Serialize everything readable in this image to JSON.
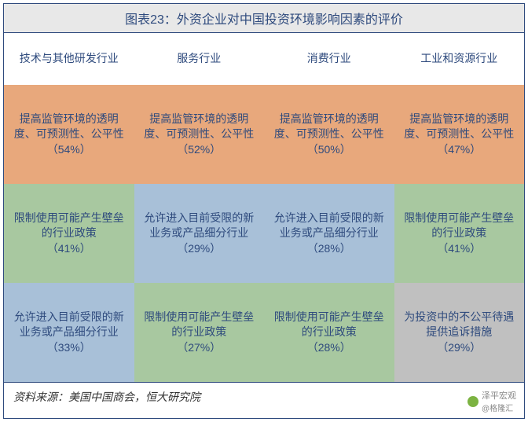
{
  "title": "图表23：外资企业对中国投资环境影响因素的评价",
  "colors": {
    "border": "#2e4a7d",
    "title_bg": "#e8e8e8",
    "header_bg": "#ffffff",
    "orange": "#e8a87c",
    "green": "#a8c8a0",
    "blue": "#a8c0d8",
    "grey": "#c0c0c0",
    "text": "#2e4a7d"
  },
  "columns": [
    "技术与其他研发行业",
    "服务行业",
    "消费行业",
    "工业和资源行业"
  ],
  "rows": [
    [
      {
        "text": "提高监管环境的透明度、可预测性、公平性",
        "pct": "（54%）",
        "color": "orange"
      },
      {
        "text": "提高监管环境的透明度、可预测性、公平性",
        "pct": "（52%）",
        "color": "orange"
      },
      {
        "text": "提高监管环境的透明度、可预测性、公平性",
        "pct": "（50%）",
        "color": "orange"
      },
      {
        "text": "提高监管环境的透明度、可预测性、公平性",
        "pct": "（47%）",
        "color": "orange"
      }
    ],
    [
      {
        "text": "限制使用可能产生壁垒的行业政策",
        "pct": "（41%）",
        "color": "green"
      },
      {
        "text": "允许进入目前受限的新业务或产品细分行业",
        "pct": "（29%）",
        "color": "blue"
      },
      {
        "text": "允许进入目前受限的新业务或产品细分行业",
        "pct": "（28%）",
        "color": "blue"
      },
      {
        "text": "限制使用可能产生壁垒的行业政策",
        "pct": "（41%）",
        "color": "green"
      }
    ],
    [
      {
        "text": "允许进入目前受限的新业务或产品细分行业",
        "pct": "（33%）",
        "color": "blue"
      },
      {
        "text": "限制使用可能产生壁垒的行业政策",
        "pct": "（27%）",
        "color": "green"
      },
      {
        "text": "限制使用可能产生壁垒的行业政策",
        "pct": "（28%）",
        "color": "green"
      },
      {
        "text": "为投资中的不公平待遇提供追诉措施",
        "pct": "（29%）",
        "color": "grey"
      }
    ]
  ],
  "source": "资料来源：美国中国商会，恒大研究院",
  "watermark": {
    "line1": "泽平宏观",
    "line2": "@格隆汇"
  }
}
